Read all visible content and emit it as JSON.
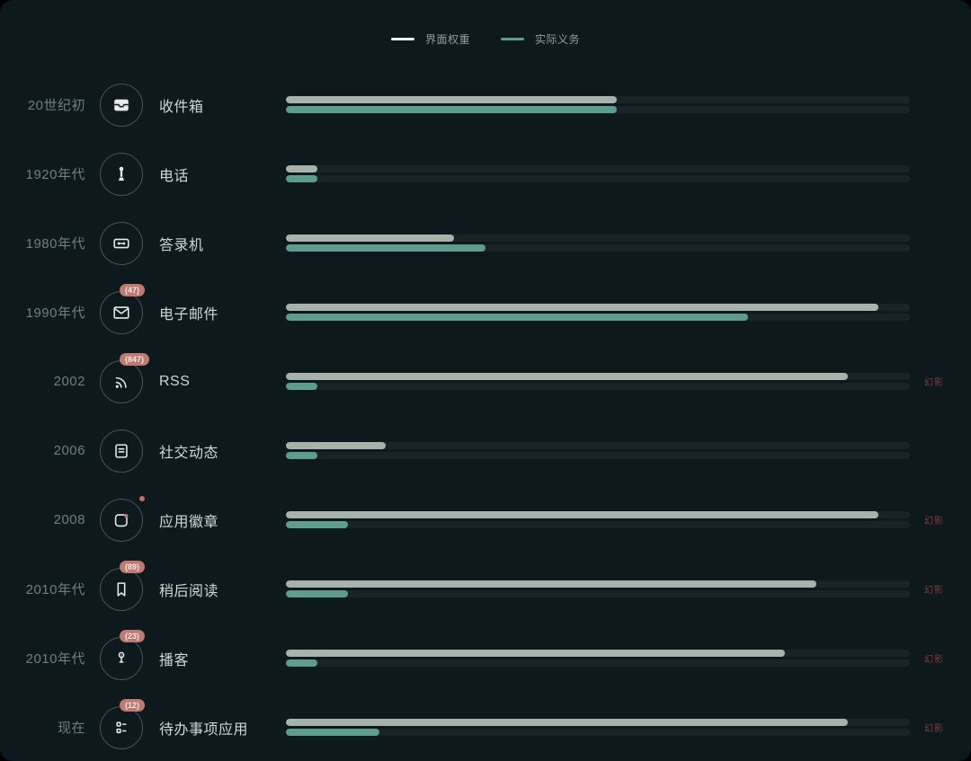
{
  "legend": {
    "items": [
      {
        "label": "界面权重",
        "color": "#eef2ef"
      },
      {
        "label": "实际义务",
        "color": "#5d9c8e"
      }
    ]
  },
  "phantom_label": "幻影",
  "colors": {
    "background": "#0d191c",
    "interface_weight_bar": "#a7b2ab",
    "actual_duty_bar": "#5d9c8e",
    "bar_track": "rgba(255,255,255,0.05)",
    "era_text": "#71807c",
    "item_text": "#cfd8d4",
    "badge_background": "#bd7a72",
    "badge_text": "#f6e6e1",
    "phantom_text": "#7e3d47",
    "notification_dot": "#c2706b"
  },
  "rows": [
    {
      "era": "20世纪初",
      "label": "收件箱",
      "icon": "inbox-icon",
      "badge": null,
      "dot": false,
      "interface_weight": 53,
      "actual_duty": 53,
      "phantom": false
    },
    {
      "era": "1920年代",
      "label": "电话",
      "icon": "phone-icon",
      "badge": null,
      "dot": false,
      "interface_weight": 5,
      "actual_duty": 5,
      "phantom": false
    },
    {
      "era": "1980年代",
      "label": "答录机",
      "icon": "cassette-icon",
      "badge": null,
      "dot": false,
      "interface_weight": 27,
      "actual_duty": 32,
      "phantom": false
    },
    {
      "era": "1990年代",
      "label": "电子邮件",
      "icon": "envelope-icon",
      "badge": "(47)",
      "dot": false,
      "interface_weight": 95,
      "actual_duty": 74,
      "phantom": false
    },
    {
      "era": "2002",
      "label": "RSS",
      "icon": "rss-icon",
      "badge": "(847)",
      "dot": false,
      "interface_weight": 90,
      "actual_duty": 5,
      "phantom": true
    },
    {
      "era": "2006",
      "label": "社交动态",
      "icon": "feed-icon",
      "badge": null,
      "dot": false,
      "interface_weight": 16,
      "actual_duty": 5,
      "phantom": false
    },
    {
      "era": "2008",
      "label": "应用徽章",
      "icon": "app-badge-icon",
      "badge": null,
      "dot": true,
      "interface_weight": 95,
      "actual_duty": 10,
      "phantom": true
    },
    {
      "era": "2010年代",
      "label": "稍后阅读",
      "icon": "bookmark-icon",
      "badge": "(89)",
      "dot": false,
      "interface_weight": 85,
      "actual_duty": 10,
      "phantom": true
    },
    {
      "era": "2010年代",
      "label": "播客",
      "icon": "mic-icon",
      "badge": "(23)",
      "dot": false,
      "interface_weight": 80,
      "actual_duty": 5,
      "phantom": true
    },
    {
      "era": "现在",
      "label": "待办事项应用",
      "icon": "checklist-icon",
      "badge": "(12)",
      "dot": false,
      "interface_weight": 90,
      "actual_duty": 15,
      "phantom": true
    }
  ],
  "chart_data": {
    "type": "bar",
    "orientation": "horizontal",
    "categories": [
      "收件箱",
      "电话",
      "答录机",
      "电子邮件",
      "RSS",
      "社交动态",
      "应用徽章",
      "稍后阅读",
      "播客",
      "待办事项应用"
    ],
    "category_eras": [
      "20世纪初",
      "1920年代",
      "1980年代",
      "1990年代",
      "2002",
      "2006",
      "2008",
      "2010年代",
      "2010年代",
      "现在"
    ],
    "series": [
      {
        "name": "界面权重",
        "color": "#a7b2ab",
        "values": [
          53,
          5,
          27,
          95,
          90,
          16,
          95,
          85,
          80,
          90
        ]
      },
      {
        "name": "实际义务",
        "color": "#5d9c8e",
        "values": [
          53,
          5,
          32,
          74,
          5,
          5,
          10,
          10,
          5,
          15
        ]
      }
    ],
    "badges": {
      "电子邮件": 47,
      "RSS": 847,
      "稍后阅读": 89,
      "播客": 23,
      "待办事项应用": 12
    },
    "phantom_rows": [
      "RSS",
      "应用徽章",
      "稍后阅读",
      "播客",
      "待办事项应用"
    ],
    "xlim": [
      0,
      100
    ],
    "grid": false,
    "legend_position": "top-center",
    "title": ""
  }
}
